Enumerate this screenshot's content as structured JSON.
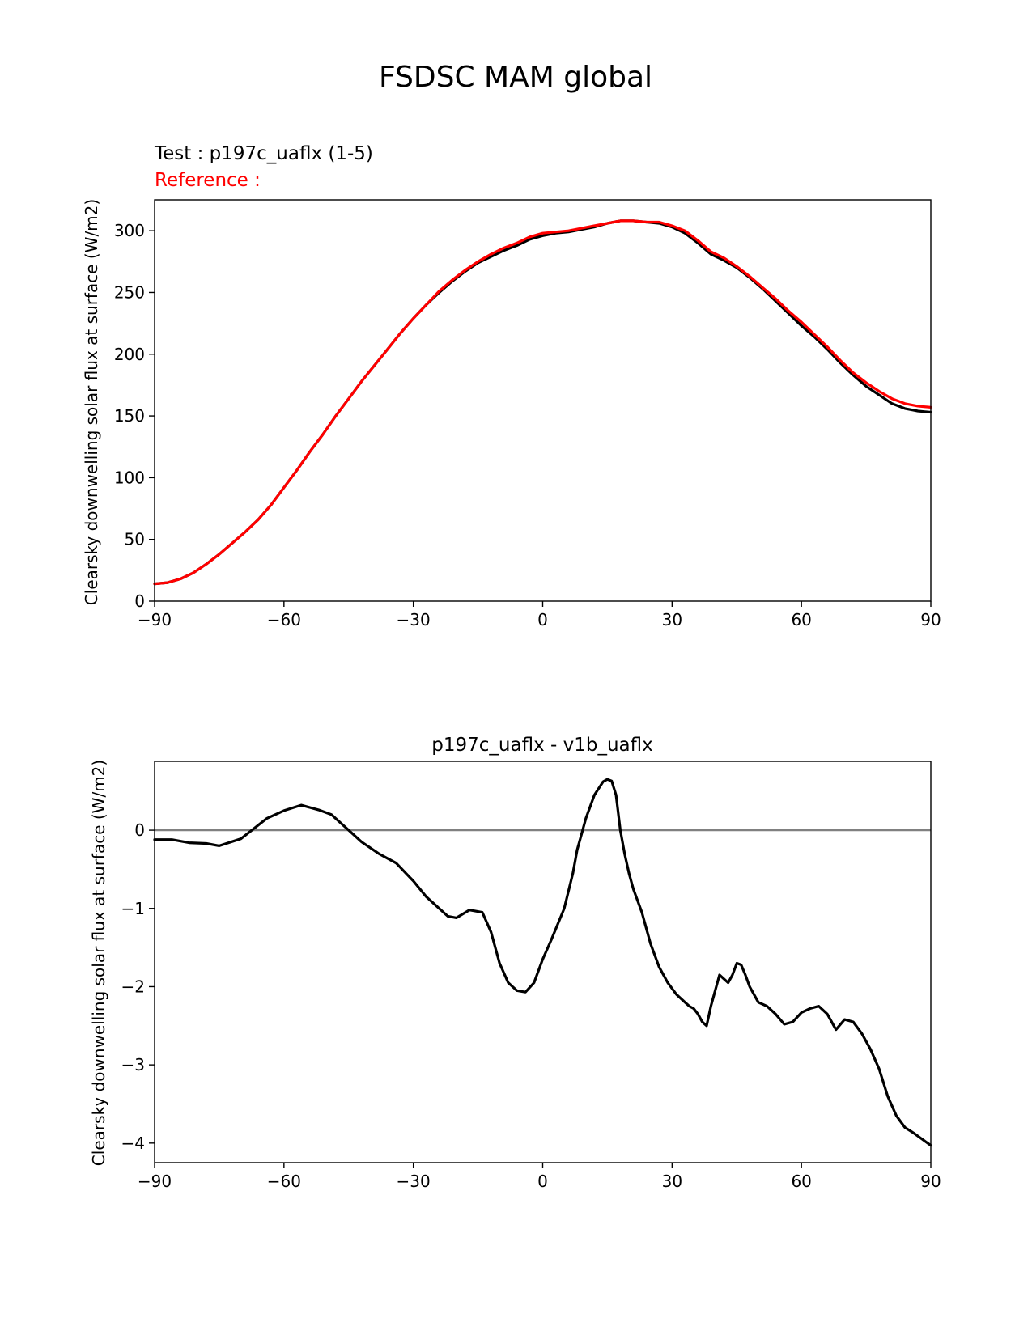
{
  "figure_title": "FSDSC MAM global",
  "chart_data": [
    {
      "type": "line",
      "title_test": "Test : p197c_uaflx (1-5)",
      "title_reference": "Reference :",
      "xlabel": "",
      "ylabel": "Clearsky downwelling solar flux at surface (W/m2)",
      "xlim": [
        -90,
        90
      ],
      "ylim": [
        0,
        325
      ],
      "xticks": [
        -90,
        -60,
        -30,
        0,
        30,
        60,
        90
      ],
      "xtick_labels": [
        "−90",
        "−60",
        "−30",
        "0",
        "30",
        "60",
        "90"
      ],
      "yticks": [
        0,
        50,
        100,
        150,
        200,
        250,
        300
      ],
      "ytick_labels": [
        "0",
        "50",
        "100",
        "150",
        "200",
        "250",
        "300"
      ],
      "colors": {
        "test": "#000000",
        "reference": "#ff0000"
      },
      "x": [
        -90,
        -87,
        -84,
        -81,
        -78,
        -75,
        -72,
        -69,
        -66,
        -63,
        -60,
        -57,
        -54,
        -51,
        -48,
        -45,
        -42,
        -39,
        -36,
        -33,
        -30,
        -27,
        -24,
        -21,
        -18,
        -15,
        -12,
        -9,
        -6,
        -3,
        0,
        3,
        6,
        9,
        12,
        15,
        18,
        21,
        24,
        27,
        30,
        33,
        36,
        39,
        42,
        45,
        48,
        51,
        54,
        57,
        60,
        63,
        66,
        69,
        72,
        75,
        78,
        81,
        84,
        87,
        90
      ],
      "series": [
        {
          "role": "test",
          "values": [
            14,
            15,
            18,
            23,
            30,
            38,
            47,
            56,
            66,
            78,
            92,
            106,
            121,
            135,
            150,
            164,
            178,
            191,
            204,
            217,
            229,
            240,
            250,
            259,
            267,
            274,
            279,
            284,
            288,
            293,
            296,
            298,
            299,
            301,
            303,
            306,
            308,
            308,
            307,
            306,
            303,
            298,
            290,
            281,
            276,
            270,
            262,
            253,
            243,
            233,
            223,
            214,
            204,
            193,
            183,
            174,
            167,
            160,
            156,
            154,
            153
          ]
        },
        {
          "role": "reference",
          "values": [
            14,
            15,
            18,
            23,
            30,
            38,
            47,
            56,
            66,
            78,
            92,
            106,
            121,
            135,
            150,
            164,
            178,
            191,
            204,
            217,
            229,
            240,
            251,
            260,
            268,
            275,
            281,
            286,
            290,
            295,
            298,
            299,
            300,
            302,
            304,
            306,
            308,
            308,
            307,
            307,
            304,
            300,
            292,
            283,
            278,
            271,
            263,
            254,
            245,
            235,
            226,
            216,
            206,
            195,
            185,
            177,
            170,
            164,
            160,
            158,
            157
          ]
        }
      ]
    },
    {
      "type": "line",
      "title": "p197c_uaflx - v1b_uaflx",
      "xlabel": "",
      "ylabel": "Clearsky downwelling solar flux at surface (W/m2)",
      "xlim": [
        -90,
        90
      ],
      "ylim": [
        -4.25,
        0.88
      ],
      "xticks": [
        -90,
        -60,
        -30,
        0,
        30,
        60,
        90
      ],
      "xtick_labels": [
        "−90",
        "−60",
        "−30",
        "0",
        "30",
        "60",
        "90"
      ],
      "yticks": [
        -4,
        -3,
        -2,
        -1,
        0
      ],
      "ytick_labels": [
        "−4",
        "−3",
        "−2",
        "−1",
        "0"
      ],
      "colors": {
        "diff": "#000000",
        "zero_line": "#808080"
      },
      "zero_line": 0,
      "x": [
        -90,
        -86,
        -82,
        -78,
        -75,
        -70,
        -67,
        -64,
        -60,
        -56,
        -52,
        -49,
        -46,
        -42,
        -38,
        -34,
        -30,
        -27,
        -24,
        -22,
        -20,
        -17,
        -14,
        -12,
        -10,
        -8,
        -6,
        -4,
        -2,
        0,
        2,
        5,
        7,
        8,
        9,
        10,
        12,
        14,
        15,
        16,
        17,
        18,
        19,
        20,
        21,
        23,
        25,
        27,
        29,
        31,
        33,
        34,
        35,
        36,
        37,
        38,
        39,
        41,
        43,
        44,
        45,
        46,
        47,
        48,
        50,
        52,
        54,
        56,
        58,
        60,
        62,
        64,
        66,
        68,
        70,
        72,
        74,
        76,
        78,
        80,
        82,
        84,
        86,
        88,
        90
      ],
      "series": [
        {
          "role": "diff",
          "values": [
            -0.12,
            -0.12,
            -0.16,
            -0.17,
            -0.2,
            -0.11,
            0.02,
            0.15,
            0.25,
            0.32,
            0.26,
            0.2,
            0.05,
            -0.15,
            -0.3,
            -0.42,
            -0.65,
            -0.85,
            -1.0,
            -1.1,
            -1.12,
            -1.02,
            -1.05,
            -1.3,
            -1.7,
            -1.95,
            -2.05,
            -2.07,
            -1.95,
            -1.65,
            -1.4,
            -1.0,
            -0.55,
            -0.25,
            -0.05,
            0.15,
            0.45,
            0.62,
            0.65,
            0.63,
            0.45,
            0.0,
            -0.3,
            -0.55,
            -0.75,
            -1.05,
            -1.45,
            -1.75,
            -1.95,
            -2.1,
            -2.2,
            -2.25,
            -2.28,
            -2.35,
            -2.45,
            -2.5,
            -2.25,
            -1.85,
            -1.95,
            -1.85,
            -1.7,
            -1.72,
            -1.85,
            -2.0,
            -2.2,
            -2.25,
            -2.35,
            -2.48,
            -2.45,
            -2.33,
            -2.28,
            -2.25,
            -2.35,
            -2.55,
            -2.42,
            -2.45,
            -2.6,
            -2.8,
            -3.05,
            -3.4,
            -3.65,
            -3.8,
            -3.87,
            -3.95,
            -4.03
          ]
        }
      ]
    }
  ]
}
